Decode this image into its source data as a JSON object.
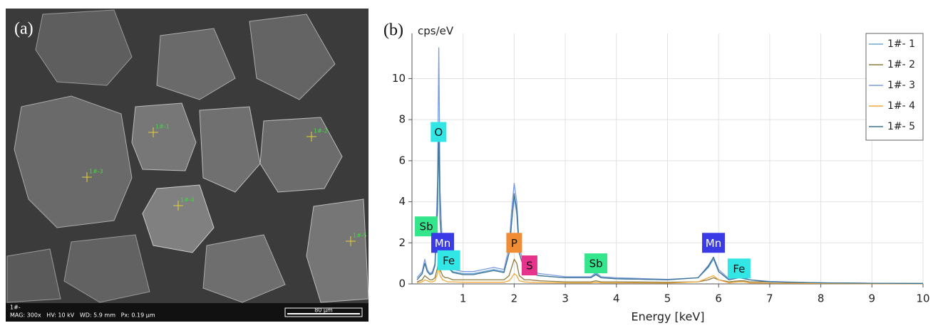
{
  "image_panel": {
    "label": "(a)",
    "info_line1": "1#-",
    "info_line2": "MAG: 300x   HV: 10 kV   WD: 5.9 mm   Px: 0.19 µm",
    "scale_bar": "80 µm",
    "point_labels": [
      "1#-1",
      "1#-2",
      "1#-3",
      "1#-4",
      "1#-5"
    ]
  },
  "chart_data": {
    "type": "line",
    "panel_label": "(b)",
    "y_label": "cps/eV",
    "x_label": "Energy [keV]",
    "x": [
      0.1,
      0.2,
      0.25,
      0.3,
      0.35,
      0.4,
      0.45,
      0.5,
      0.525,
      0.55,
      0.6,
      0.65,
      0.7,
      0.8,
      1.0,
      1.2,
      1.4,
      1.6,
      1.8,
      1.9,
      1.95,
      2.0,
      2.05,
      2.1,
      2.2,
      2.3,
      2.5,
      3.0,
      3.5,
      3.6,
      3.7,
      4.0,
      5.0,
      5.6,
      5.8,
      5.9,
      6.0,
      6.2,
      6.4,
      6.5,
      6.6,
      7.0,
      8.0,
      9.0,
      10.0
    ],
    "series": [
      {
        "name": "1#- 1",
        "color": "#6fa8d6",
        "values": [
          0.2,
          0.5,
          1.0,
          0.6,
          0.5,
          0.5,
          0.9,
          3.5,
          7.2,
          3.0,
          1.3,
          1.1,
          0.9,
          0.6,
          0.5,
          0.5,
          0.6,
          0.7,
          0.6,
          1.5,
          3.0,
          4.2,
          3.4,
          1.5,
          0.7,
          0.5,
          0.4,
          0.3,
          0.3,
          0.5,
          0.3,
          0.25,
          0.2,
          0.3,
          0.8,
          1.2,
          0.6,
          0.2,
          0.3,
          0.3,
          0.2,
          0.1,
          0.05,
          0.03,
          0.02
        ]
      },
      {
        "name": "1#- 2",
        "color": "#8c7b3e",
        "values": [
          0.1,
          0.2,
          0.4,
          0.3,
          0.2,
          0.2,
          0.3,
          0.8,
          1.5,
          0.7,
          0.4,
          0.3,
          0.3,
          0.2,
          0.2,
          0.2,
          0.2,
          0.2,
          0.2,
          0.4,
          0.8,
          1.2,
          1.0,
          0.4,
          0.2,
          0.2,
          0.15,
          0.1,
          0.1,
          0.15,
          0.1,
          0.1,
          0.08,
          0.1,
          0.2,
          0.3,
          0.2,
          0.1,
          0.15,
          0.15,
          0.1,
          0.1,
          0.04,
          0.03,
          0.02
        ]
      },
      {
        "name": "1#- 3",
        "color": "#7b9be0",
        "values": [
          0.3,
          0.6,
          1.2,
          0.7,
          0.5,
          0.6,
          1.0,
          5.0,
          11.5,
          4.5,
          1.6,
          1.2,
          1.0,
          0.7,
          0.6,
          0.6,
          0.7,
          0.8,
          0.7,
          1.8,
          3.6,
          4.9,
          4.0,
          1.8,
          0.8,
          0.6,
          0.5,
          0.35,
          0.35,
          0.55,
          0.35,
          0.3,
          0.22,
          0.3,
          0.9,
          1.3,
          0.7,
          0.25,
          0.35,
          0.3,
          0.2,
          0.12,
          0.05,
          0.03,
          0.02
        ]
      },
      {
        "name": "1#- 4",
        "color": "#f2a93b",
        "values": [
          0.05,
          0.1,
          0.2,
          0.15,
          0.1,
          0.1,
          0.15,
          0.5,
          1.0,
          0.4,
          0.2,
          0.15,
          0.1,
          0.1,
          0.08,
          0.08,
          0.08,
          0.08,
          0.08,
          0.15,
          0.3,
          0.5,
          0.4,
          0.15,
          0.1,
          0.08,
          0.06,
          0.05,
          0.05,
          0.08,
          0.05,
          0.05,
          0.04,
          0.1,
          0.3,
          0.4,
          0.2,
          0.05,
          0.1,
          0.1,
          0.05,
          0.04,
          0.02,
          0.01,
          0.01
        ]
      },
      {
        "name": "1#- 5",
        "color": "#3b7290",
        "values": [
          0.2,
          0.5,
          1.0,
          0.6,
          0.45,
          0.5,
          0.9,
          3.8,
          7.6,
          3.2,
          1.3,
          1.0,
          0.8,
          0.55,
          0.45,
          0.45,
          0.55,
          0.65,
          0.55,
          1.5,
          3.0,
          4.4,
          3.6,
          1.5,
          0.65,
          0.5,
          0.4,
          0.3,
          0.3,
          0.45,
          0.3,
          0.25,
          0.2,
          0.3,
          0.85,
          1.3,
          0.6,
          0.2,
          0.3,
          0.25,
          0.2,
          0.1,
          0.05,
          0.03,
          0.02
        ]
      }
    ],
    "annotations": [
      {
        "text": "O",
        "x": 0.52,
        "y": 7.4,
        "color": "#33e6e6"
      },
      {
        "text": "Sb",
        "x": 0.28,
        "y": 2.8,
        "color": "#33e68c"
      },
      {
        "text": "Mn",
        "x": 0.6,
        "y": 2.0,
        "color": "#3a3ae6"
      },
      {
        "text": "Fe",
        "x": 0.72,
        "y": 1.15,
        "color": "#33e6e6"
      },
      {
        "text": "P",
        "x": 2.0,
        "y": 2.0,
        "color": "#f08c33"
      },
      {
        "text": "S",
        "x": 2.3,
        "y": 0.9,
        "color": "#e6338c"
      },
      {
        "text": "Sb",
        "x": 3.6,
        "y": 1.0,
        "color": "#33e68c"
      },
      {
        "text": "Mn",
        "x": 5.9,
        "y": 2.0,
        "color": "#3a3ae6"
      },
      {
        "text": "Fe",
        "x": 6.4,
        "y": 0.75,
        "color": "#33e6e6"
      }
    ],
    "xlim": [
      0,
      10
    ],
    "xticks": [
      1,
      2,
      3,
      4,
      5,
      6,
      7,
      8,
      9,
      10
    ],
    "ylim": [
      0,
      12.2
    ],
    "yticks": [
      0,
      2,
      4,
      6,
      8,
      10
    ],
    "grid": true,
    "legend": "upper right"
  }
}
